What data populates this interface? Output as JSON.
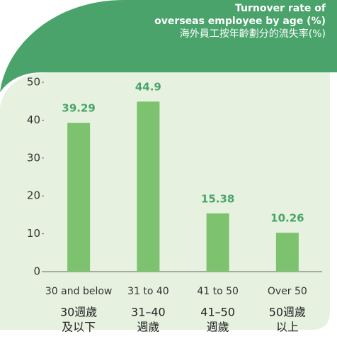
{
  "chart_data": {
    "type": "bar",
    "title": [
      "Turnover rate of",
      "overseas employee by age (%)"
    ],
    "subtitle": "海外員工按年齡劃分的流失率(%)",
    "categories": [
      "30 and below",
      "31 to 40",
      "41 to 50",
      "Over 50"
    ],
    "categories_zh": [
      [
        "30週歲",
        "及以下"
      ],
      [
        "31–40",
        "週歲"
      ],
      [
        "41–50",
        "週歲"
      ],
      [
        "50週歲",
        "以上"
      ]
    ],
    "values": [
      39.29,
      44.9,
      15.38,
      10.26
    ],
    "color": "#7dc36f",
    "label_color": "#4aa36b",
    "ylim": [
      0,
      50
    ],
    "yticks": [
      0,
      10,
      20,
      30,
      40,
      50
    ],
    "grid": false
  }
}
